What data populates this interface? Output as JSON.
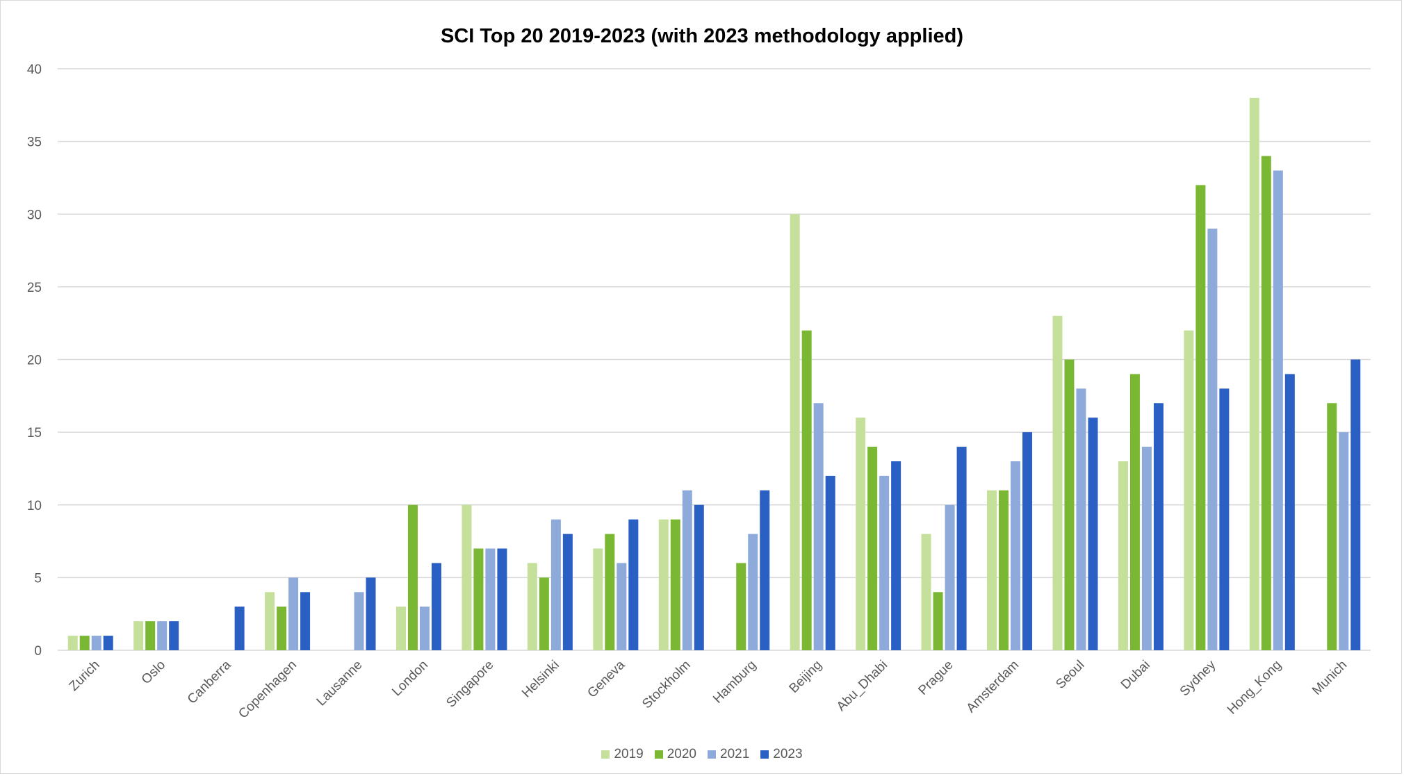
{
  "chart_data": {
    "type": "bar",
    "title": "SCI Top 20 2019-2023 (with 2023 methodology applied)",
    "xlabel": "",
    "ylabel": "",
    "ylim": [
      0,
      40
    ],
    "yticks": [
      0,
      5,
      10,
      15,
      20,
      25,
      30,
      35,
      40
    ],
    "grid": true,
    "legend_position": "bottom",
    "categories": [
      "Zurich",
      "Oslo",
      "Canberra",
      "Copenhagen",
      "Lausanne",
      "London",
      "Singapore",
      "Helsinki",
      "Geneva",
      "Stockholm",
      "Hamburg",
      "Beijing",
      "Abu_Dhabi",
      "Prague",
      "Amsterdam",
      "Seoul",
      "Dubai",
      "Sydney",
      "Hong_Kong",
      "Munich"
    ],
    "series": [
      {
        "name": "2019",
        "color": "#c5e09b",
        "values": [
          1,
          2,
          null,
          4,
          null,
          3,
          10,
          6,
          7,
          9,
          null,
          30,
          16,
          8,
          11,
          23,
          13,
          22,
          38,
          null
        ]
      },
      {
        "name": "2020",
        "color": "#7ab733",
        "values": [
          1,
          2,
          null,
          3,
          null,
          10,
          7,
          5,
          8,
          9,
          6,
          22,
          14,
          4,
          11,
          20,
          19,
          32,
          34,
          17
        ]
      },
      {
        "name": "2021",
        "color": "#8eaadb",
        "values": [
          1,
          2,
          null,
          5,
          4,
          3,
          7,
          9,
          6,
          11,
          8,
          17,
          12,
          10,
          13,
          18,
          14,
          29,
          33,
          15
        ]
      },
      {
        "name": "2023",
        "color": "#2a5fc4",
        "values": [
          1,
          2,
          3,
          4,
          5,
          6,
          7,
          8,
          9,
          10,
          11,
          12,
          13,
          14,
          15,
          16,
          17,
          18,
          19,
          20
        ]
      }
    ]
  }
}
